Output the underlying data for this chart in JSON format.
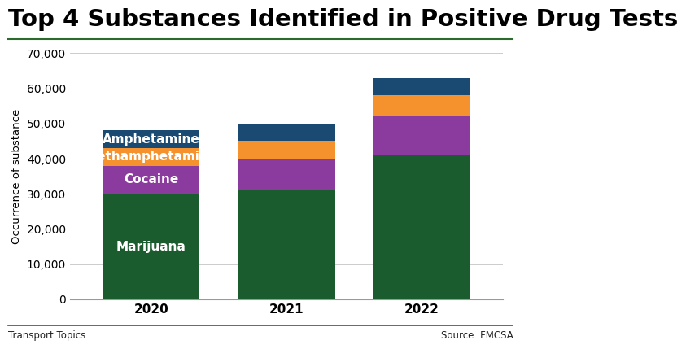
{
  "title": "Top 4 Substances Identified in Positive Drug Tests",
  "categories": [
    "2020",
    "2021",
    "2022"
  ],
  "substances": [
    "Marijuana",
    "Cocaine",
    "Methamphetamine",
    "Amphetamine"
  ],
  "values": {
    "Marijuana": [
      30000,
      31000,
      41000
    ],
    "Cocaine": [
      8000,
      9000,
      11000
    ],
    "Methamphetamine": [
      5000,
      5000,
      6000
    ],
    "Amphetamine": [
      5000,
      5000,
      5000
    ]
  },
  "colors": {
    "Marijuana": "#1a5c2e",
    "Cocaine": "#8b3a9e",
    "Methamphetamine": "#f5922e",
    "Amphetamine": "#1a4a72"
  },
  "ylabel": "Occurrence of substance",
  "ylim": [
    0,
    70000
  ],
  "yticks": [
    0,
    10000,
    20000,
    30000,
    40000,
    50000,
    60000,
    70000
  ],
  "ytick_labels": [
    "0",
    "10,000",
    "20,000",
    "30,000",
    "40,000",
    "50,000",
    "60,000",
    "70,000"
  ],
  "footer_left": "Transport Topics",
  "footer_right": "Source: FMCSA",
  "background_color": "#ffffff",
  "title_fontsize": 21,
  "tick_fontsize": 10,
  "bar_label_fontsize": 11,
  "bar_width": 0.72,
  "border_color": "#2d6a2d"
}
